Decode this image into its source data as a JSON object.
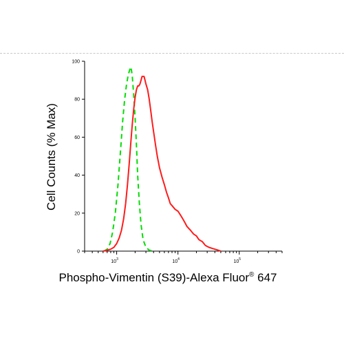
{
  "chart_data": {
    "type": "line",
    "title": "",
    "xlabel_main": "Phospho-Vimentin (S39)-Alexa Fluor",
    "xlabel_sup": "®",
    "xlabel_tail": " 647",
    "ylabel": "Cell Counts (% Max)",
    "x_scale": "log",
    "xlim": [
      300,
      500000
    ],
    "ylim": [
      0,
      100
    ],
    "yticks": [
      0,
      20,
      40,
      60,
      80,
      100
    ],
    "xticks": [
      {
        "value": 1000,
        "base": "10",
        "exp": "3"
      },
      {
        "value": 10000,
        "base": "10",
        "exp": "4"
      },
      {
        "value": 100000,
        "base": "10",
        "exp": "5"
      }
    ],
    "grid": false,
    "series": [
      {
        "color": "#00dd00",
        "style": "dashed",
        "x": [
          620,
          700,
          780,
          860,
          950,
          1050,
          1150,
          1250,
          1350,
          1450,
          1550,
          1650,
          1700,
          1750,
          1800,
          1900,
          2000,
          2100,
          2200,
          2350,
          2500,
          2700,
          3000,
          3400,
          4000
        ],
        "y": [
          0,
          1,
          4,
          10,
          20,
          35,
          52,
          68,
          80,
          88,
          93,
          96,
          97,
          95,
          92,
          82,
          70,
          56,
          40,
          25,
          14,
          6,
          2,
          0.5,
          0
        ]
      },
      {
        "color": "#ff1a1a",
        "style": "solid",
        "x": [
          600,
          700,
          800,
          900,
          1000,
          1100,
          1200,
          1300,
          1400,
          1500,
          1600,
          1700,
          1800,
          1900,
          2000,
          2100,
          2200,
          2300,
          2400,
          2500,
          2600,
          2700,
          2800,
          2900,
          3000,
          3200,
          3400,
          3600,
          3800,
          4000,
          4300,
          4600,
          5000,
          5500,
          6000,
          6500,
          7000,
          7500,
          8000,
          9000,
          10000,
          11000,
          12000,
          13000,
          14000,
          15000,
          16000,
          18000,
          20000,
          22000,
          25000,
          28000,
          32000,
          36000,
          40000,
          45000,
          50000
        ],
        "y": [
          0,
          0.5,
          1,
          2,
          4,
          7,
          11,
          17,
          25,
          35,
          46,
          57,
          67,
          75,
          81,
          85,
          87,
          87,
          88,
          90,
          92,
          92,
          92,
          90,
          88,
          85,
          80,
          74,
          68,
          63,
          56,
          50,
          44,
          39,
          35,
          31,
          28,
          25,
          24,
          22,
          21,
          19,
          17,
          15,
          13,
          12,
          11,
          9,
          8,
          6,
          5,
          3,
          2,
          1.5,
          1,
          0.5,
          0
        ]
      }
    ]
  }
}
